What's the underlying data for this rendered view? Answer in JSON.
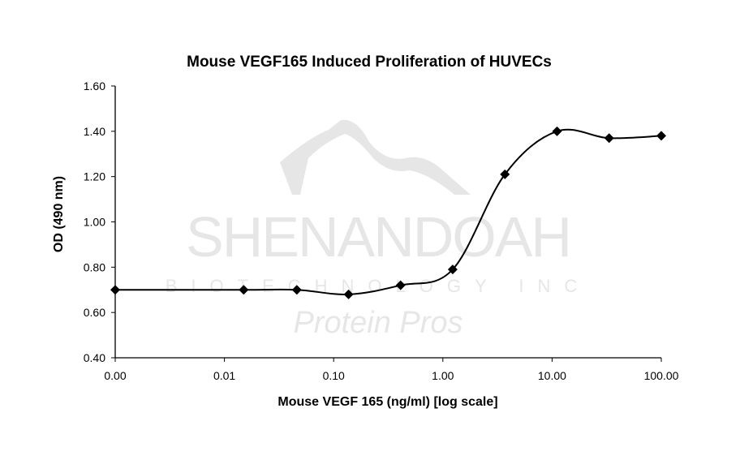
{
  "chart_data": {
    "type": "line",
    "title": "Mouse VEGF165 Induced Proliferation of HUVECs",
    "xlabel": "Mouse VEGF 165 (ng/ml) [log scale]",
    "ylabel": "OD (490 nm)",
    "x_scale": "log",
    "xlim": [
      0.001,
      100
    ],
    "ylim": [
      0.4,
      1.6
    ],
    "x_tick_labels": [
      "0.00",
      "0.01",
      "0.10",
      "1.00",
      "10.00",
      "100.00"
    ],
    "x_tick_values": [
      0.001,
      0.01,
      0.1,
      1,
      10,
      100
    ],
    "y_tick_labels": [
      "0.40",
      "0.60",
      "0.80",
      "1.00",
      "1.20",
      "1.40",
      "1.60"
    ],
    "y_tick_values": [
      0.4,
      0.6,
      0.8,
      1.0,
      1.2,
      1.4,
      1.6
    ],
    "grid": false,
    "marker": "diamond",
    "line_style": "smoothed",
    "color": "#000000",
    "series": [
      {
        "x": [
          0.001,
          0.015,
          0.046,
          0.137,
          0.41,
          1.23,
          3.7,
          11.1,
          33.3,
          100
        ],
        "y": [
          0.7,
          0.7,
          0.7,
          0.68,
          0.72,
          0.79,
          1.21,
          1.4,
          1.37,
          1.38
        ]
      }
    ]
  },
  "watermark": {
    "line1": "SHENANDOAH",
    "line2": "BIOTECHNOLOGY INC",
    "line3": "Protein Pros"
  }
}
